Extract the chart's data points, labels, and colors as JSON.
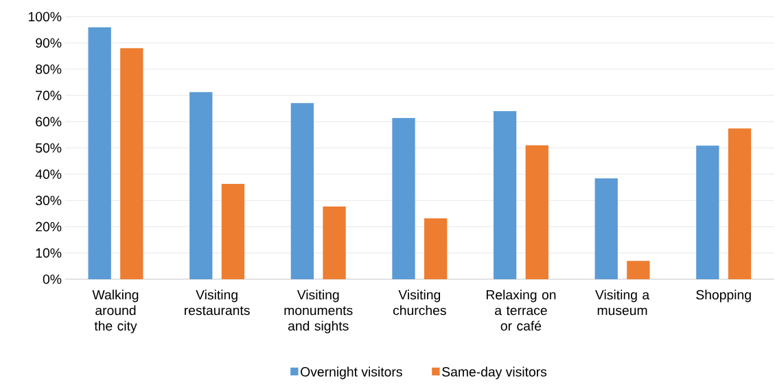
{
  "chart_data": {
    "type": "bar",
    "categories": [
      "Walking around the city",
      "Visiting restaurants",
      "Visiting monuments and sights",
      "Visiting churches",
      "Relaxing on a terrace or café",
      "Visiting a museum",
      "Shopping"
    ],
    "series": [
      {
        "name": "Overnight visitors",
        "color": "#5b9bd5",
        "values": [
          96,
          71.3,
          67.1,
          61.4,
          64,
          38.4,
          50.9
        ]
      },
      {
        "name": "Same-day visitors",
        "color": "#ed7d31",
        "values": [
          88,
          36.3,
          27.7,
          23.2,
          51,
          7,
          57.4
        ]
      }
    ],
    "ylim": [
      0,
      100
    ],
    "yticks": [
      {
        "value": 0,
        "label": "0%"
      },
      {
        "value": 10,
        "label": "10%"
      },
      {
        "value": 20,
        "label": "20%"
      },
      {
        "value": 30,
        "label": "30%"
      },
      {
        "value": 40,
        "label": "40%"
      },
      {
        "value": 50,
        "label": "50%"
      },
      {
        "value": 60,
        "label": "60%"
      },
      {
        "value": 70,
        "label": "70%"
      },
      {
        "value": 80,
        "label": "80%"
      },
      {
        "value": 90,
        "label": "90%"
      },
      {
        "value": 100,
        "label": "100%"
      }
    ],
    "grid": "y",
    "legend": "bottom"
  }
}
